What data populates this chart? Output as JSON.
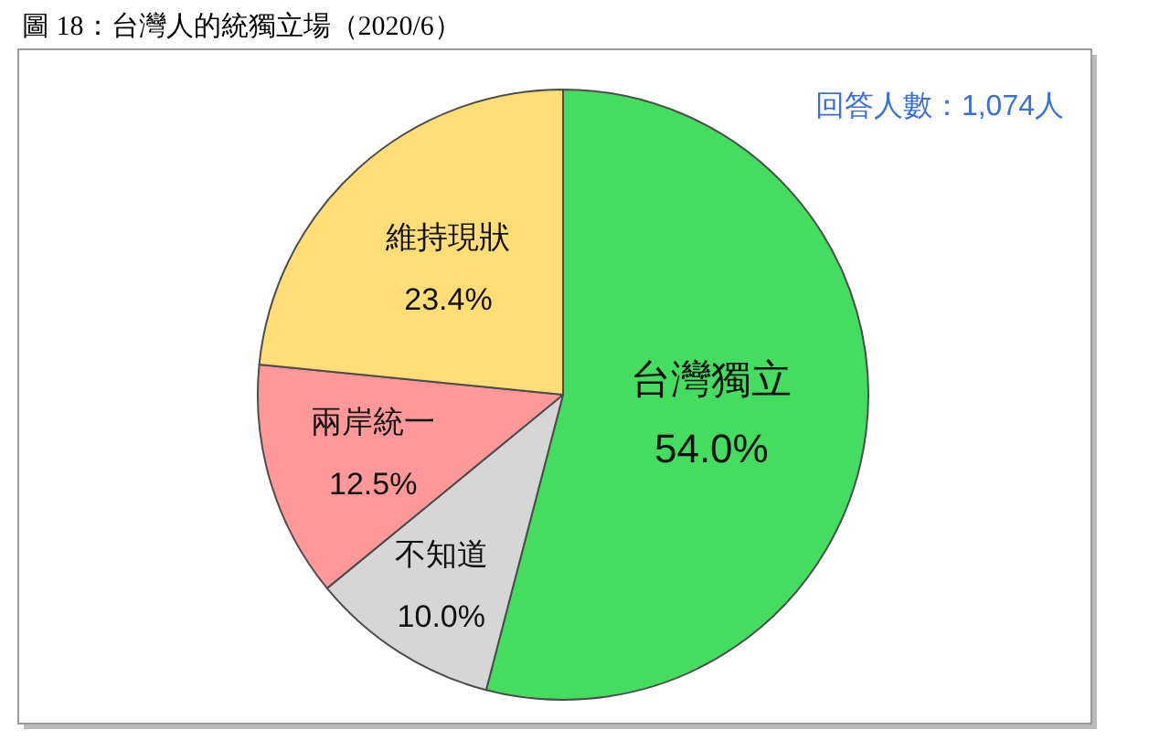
{
  "chart_data": {
    "type": "pie",
    "title": "圖 18：台灣人的統獨立場（2020/6）",
    "categories": [
      "台灣獨立",
      "不知道",
      "兩岸統一",
      "維持現狀"
    ],
    "values": [
      54.0,
      10.0,
      12.5,
      23.4
    ],
    "colors": [
      "#44dd5f",
      "#d6d6d6",
      "#ff9999",
      "#ffdd77"
    ],
    "value_labels": [
      "54.0%",
      "10.0%",
      "12.5%",
      "23.4%"
    ],
    "annotations": [
      "回答人數：1,074人"
    ]
  }
}
